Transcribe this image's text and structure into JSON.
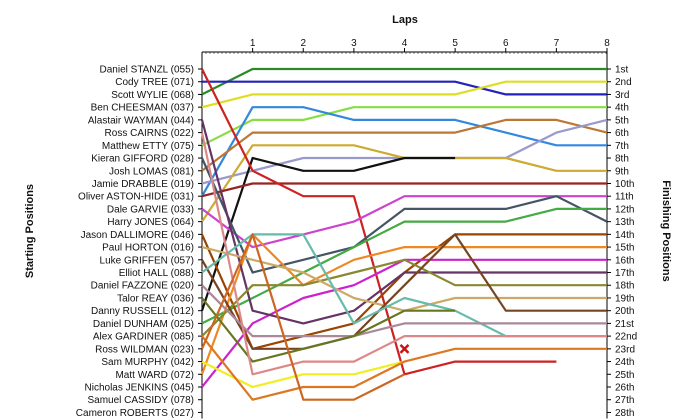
{
  "chart_data": {
    "type": "line",
    "title": "Laps",
    "ylabel_left": "Starting Positions",
    "ylabel_right": "Finishing Positions",
    "x_ticks": [
      1,
      2,
      3,
      4,
      5,
      6,
      7,
      8
    ],
    "xlim": [
      0,
      8
    ],
    "positions": 28,
    "grid": false,
    "drivers": [
      "Daniel STANZL (055)",
      "Cody TREE (071)",
      "Scott WYLIE (068)",
      "Ben CHEESMAN (037)",
      "Alastair WAYMAN (044)",
      "Ross CAIRNS (022)",
      "Matthew ETTY (075)",
      "Kieran GIFFORD (028)",
      "Josh LOMAS (081)",
      "Jamie DRABBLE (019)",
      "Oliver ASTON-HIDE (031)",
      "Dale GARVIE (033)",
      "Harry JONES (064)",
      "Jason DALLIMORE (046)",
      "Paul HORTON (016)",
      "Luke GRIFFEN (057)",
      "Elliot HALL (088)",
      "Daniel FAZZONE (020)",
      "Talor REAY (036)",
      "Danny RUSSELL (012)",
      "Daniel DUNHAM (025)",
      "Alex GARDINER (085)",
      "Ross WILDMAN (023)",
      "Sam MURPHY (042)",
      "Matt WARD (072)",
      "Nicholas JENKINS (045)",
      "Samuel CASSIDY (078)",
      "Cameron ROBERTS (027)"
    ],
    "finish_labels": [
      "1st",
      "2nd",
      "3rd",
      "4th",
      "5th",
      "6th",
      "7th",
      "8th",
      "9th",
      "10th",
      "11th",
      "12th",
      "13th",
      "14th",
      "15th",
      "16th",
      "17th",
      "18th",
      "19th",
      "20th",
      "21st",
      "22nd",
      "23rd",
      "24th",
      "25th",
      "26th",
      "27th",
      "28th"
    ],
    "series": [
      {
        "color": "#2a8a2a",
        "values": [
          3,
          1,
          1,
          1,
          1,
          1,
          1,
          1,
          1
        ]
      },
      {
        "color": "#2222bb",
        "values": [
          2,
          2,
          2,
          2,
          2,
          2,
          3,
          3,
          3
        ]
      },
      {
        "color": "#dddd22",
        "values": [
          4,
          3,
          3,
          3,
          3,
          3,
          2,
          2,
          2
        ]
      },
      {
        "color": "#88dd44",
        "values": [
          7,
          5,
          5,
          4,
          4,
          4,
          4,
          4,
          4
        ]
      },
      {
        "color": "#3388dd",
        "values": [
          11,
          4,
          4,
          5,
          5,
          5,
          6,
          7,
          7
        ]
      },
      {
        "color": "#bb7733",
        "values": [
          9,
          6,
          6,
          6,
          6,
          6,
          5,
          5,
          6
        ]
      },
      {
        "color": "#9999cc",
        "values": [
          10,
          9,
          8,
          8,
          8,
          8,
          8,
          6,
          5
        ]
      },
      {
        "color": "#ccaa33",
        "values": [
          13,
          7,
          7,
          7,
          8,
          8,
          8,
          9,
          9
        ]
      },
      {
        "color": "#111111",
        "values": [
          20,
          8,
          9,
          9,
          8,
          8
        ]
      },
      {
        "color": "#992222",
        "values": [
          11,
          10,
          10,
          10,
          10,
          10,
          10,
          10,
          10
        ]
      },
      {
        "color": "#cc2222",
        "values": [
          1,
          9,
          11,
          11,
          25,
          24,
          24,
          24
        ]
      },
      {
        "color": "#cc44cc",
        "values": [
          12,
          15,
          14,
          13,
          11,
          11,
          11,
          11,
          11
        ]
      },
      {
        "color": "#445566",
        "values": [
          8,
          17,
          16,
          15,
          12,
          12,
          12,
          11,
          13
        ]
      },
      {
        "color": "#44aa44",
        "values": [
          21,
          19,
          17,
          15,
          13,
          13,
          13,
          12,
          12
        ]
      },
      {
        "color": "#994400",
        "values": [
          14,
          23,
          22,
          21,
          17,
          14,
          14,
          14,
          14
        ]
      },
      {
        "color": "#ee8822",
        "values": [
          25,
          14,
          18,
          16,
          15,
          15,
          15,
          15,
          15
        ]
      },
      {
        "color": "#cc22cc",
        "values": [
          26,
          21,
          19,
          18,
          16,
          16,
          16,
          16,
          16
        ]
      },
      {
        "color": "#663366",
        "values": [
          5,
          20,
          21,
          20,
          17,
          17,
          17,
          17,
          17
        ]
      },
      {
        "color": "#888833",
        "values": [
          22,
          18,
          18,
          17,
          16,
          18,
          18,
          18,
          18
        ]
      },
      {
        "color": "#ccaa66",
        "values": [
          15,
          16,
          17,
          19,
          20,
          19,
          19,
          19,
          19
        ]
      },
      {
        "color": "#774422",
        "values": [
          16,
          23,
          23,
          22,
          18,
          14,
          20,
          20,
          20
        ]
      },
      {
        "color": "#66bbaa",
        "values": [
          17,
          14,
          14,
          21,
          19,
          20,
          22,
          22,
          22
        ]
      },
      {
        "color": "#aa8899",
        "values": [
          18,
          22,
          22,
          22,
          21,
          21,
          21,
          21,
          21
        ]
      },
      {
        "color": "#667722",
        "values": [
          19,
          24,
          23,
          22,
          20,
          20
        ]
      },
      {
        "color": "#dd8888",
        "values": [
          6,
          25,
          24,
          24,
          22,
          22,
          22,
          22,
          22
        ]
      },
      {
        "color": "#eeee22",
        "values": [
          24,
          26,
          25,
          25,
          24
        ]
      },
      {
        "color": "#dd7722",
        "values": [
          22,
          27,
          26,
          26,
          24,
          23,
          23,
          23,
          23
        ]
      },
      {
        "color": "#cc6622",
        "values": [
          23,
          14,
          27,
          27,
          25
        ]
      }
    ],
    "annotations": [
      {
        "type": "crash-marker",
        "lap": 4,
        "position": 23
      }
    ]
  }
}
